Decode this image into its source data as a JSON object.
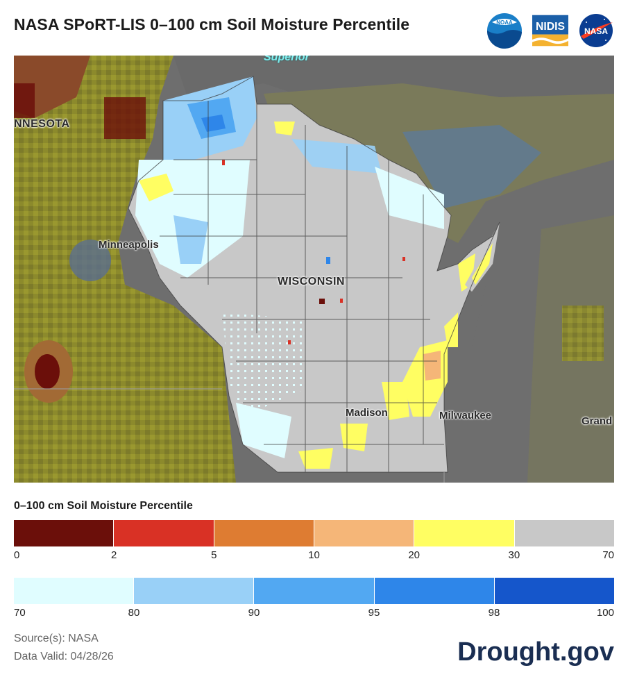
{
  "title": "NASA SPoRT-LIS 0–100 cm Soil Moisture Percentile",
  "logos": [
    {
      "name": "noaa-logo",
      "text": "NOAA",
      "color": "#1a7fc8"
    },
    {
      "name": "nidis-logo",
      "text": "NIDIS",
      "color": "#1b5fa8"
    },
    {
      "name": "nasa-logo",
      "text": "NASA",
      "color": "#0b3d91"
    }
  ],
  "map": {
    "labels": {
      "superior": "Superior",
      "minnesota": "NNESOTA",
      "minneapolis": "Minneapolis",
      "wisconsin": "WISCONSIN",
      "madison": "Madison",
      "milwaukee": "Milwaukee",
      "grand": "Grand"
    }
  },
  "legend": {
    "title": "0–100 cm Soil Moisture Percentile",
    "dry": {
      "colors": [
        "#6b0f0a",
        "#d93125",
        "#de7c32",
        "#f5b678",
        "#fffe62",
        "#c8c8c8"
      ],
      "ticks": [
        "0",
        "2",
        "5",
        "10",
        "20",
        "30",
        "70"
      ]
    },
    "wet": {
      "colors": [
        "#e0fdff",
        "#99d0f7",
        "#52a8f2",
        "#2e86e9",
        "#1556cb"
      ],
      "ticks": [
        "70",
        "80",
        "90",
        "95",
        "98",
        "100"
      ]
    }
  },
  "source": "Source(s): NASA",
  "data_valid": "Data Valid: 04/28/26",
  "brand": "Drought.gov"
}
